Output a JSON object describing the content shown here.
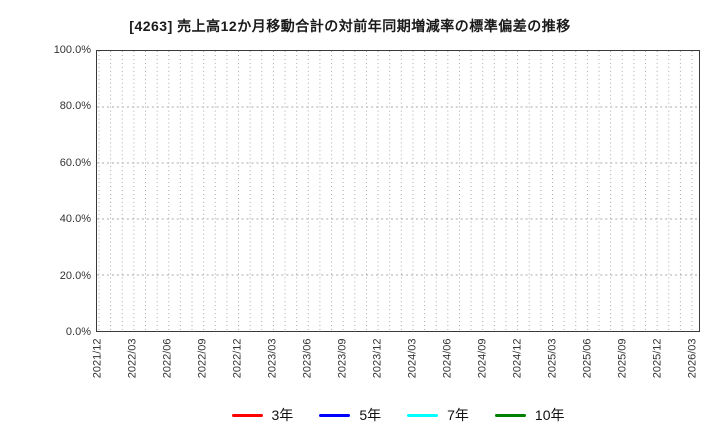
{
  "chart_data": {
    "type": "line",
    "title": "[4263]  売上高12か月移動合計の対前年同期増減率の標準偏差の推移",
    "xlabel": "",
    "ylabel": "",
    "ylim": [
      0,
      100
    ],
    "grid": true,
    "legend_position": "bottom",
    "x_tick_labels": [
      "2021/12",
      "2022/03",
      "2022/06",
      "2022/09",
      "2022/12",
      "2023/03",
      "2023/06",
      "2023/09",
      "2023/12",
      "2024/03",
      "2024/06",
      "2024/09",
      "2024/12",
      "2025/03",
      "2025/06",
      "2025/09",
      "2025/12",
      "2026/03"
    ],
    "x_minor_divisions_per_interval": 3,
    "y_ticks": [
      {
        "value": 0,
        "label": "0.0%"
      },
      {
        "value": 20,
        "label": "20.0%"
      },
      {
        "value": 40,
        "label": "40.0%"
      },
      {
        "value": 60,
        "label": "60.0%"
      },
      {
        "value": 80,
        "label": "80.0%"
      },
      {
        "value": 100,
        "label": "100.0%"
      }
    ],
    "series": [
      {
        "name": "3年",
        "color": "#ff0000",
        "values": []
      },
      {
        "name": "5年",
        "color": "#0000ff",
        "values": []
      },
      {
        "name": "7年",
        "color": "#00ffff",
        "values": []
      },
      {
        "name": "10年",
        "color": "#008000",
        "values": []
      }
    ],
    "colors": {
      "grid": "#a9a9a9",
      "axis_border": "#3a3a3a",
      "tick_text": "#333333",
      "title_text": "#1a1a1a"
    }
  }
}
